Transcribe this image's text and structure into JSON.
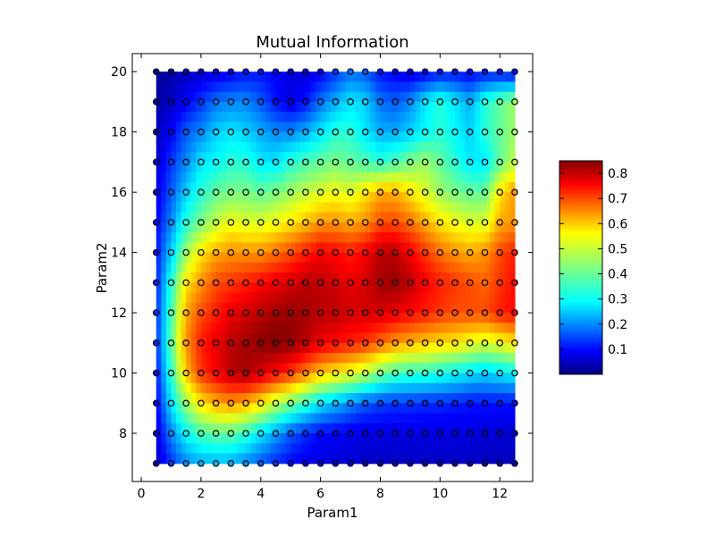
{
  "chart_data": {
    "type": "heatmap",
    "title": "Mutual Information",
    "xlabel": "Param1",
    "ylabel": "Param2",
    "xlim": [
      -0.3,
      13.1
    ],
    "ylim": [
      6.4,
      20.6
    ],
    "x_ticks": [
      0,
      2,
      4,
      6,
      8,
      10,
      12
    ],
    "y_ticks": [
      8,
      10,
      12,
      14,
      16,
      18,
      20
    ],
    "colormap": "jet",
    "colorbar": {
      "range": [
        0.0,
        0.85
      ],
      "ticks": [
        "0.1",
        "0.2",
        "0.3",
        "0.4",
        "0.5",
        "0.6",
        "0.7",
        "0.8"
      ],
      "placement": "right"
    },
    "grid": false,
    "x": [
      0.5,
      1.0,
      1.5,
      2.0,
      2.5,
      3.0,
      3.5,
      4.0,
      4.5,
      5.0,
      5.5,
      6.0,
      6.5,
      7.0,
      7.5,
      8.0,
      8.5,
      9.0,
      9.5,
      10.0,
      10.5,
      11.0,
      11.5,
      12.0,
      12.5
    ],
    "y": [
      20,
      19,
      18,
      17,
      16,
      15,
      14,
      13,
      12,
      11,
      10,
      9,
      8,
      7
    ],
    "z": [
      [
        0.02,
        0.03,
        0.05,
        0.07,
        0.08,
        0.1,
        0.12,
        0.12,
        0.1,
        0.08,
        0.07,
        0.1,
        0.15,
        0.2,
        0.18,
        0.12,
        0.1,
        0.08,
        0.1,
        0.12,
        0.12,
        0.1,
        0.12,
        0.12,
        0.1
      ],
      [
        0.03,
        0.06,
        0.1,
        0.15,
        0.2,
        0.22,
        0.22,
        0.18,
        0.12,
        0.08,
        0.12,
        0.2,
        0.25,
        0.3,
        0.28,
        0.2,
        0.18,
        0.22,
        0.3,
        0.35,
        0.3,
        0.25,
        0.35,
        0.4,
        0.45
      ],
      [
        0.05,
        0.1,
        0.18,
        0.22,
        0.28,
        0.3,
        0.28,
        0.25,
        0.22,
        0.22,
        0.25,
        0.3,
        0.35,
        0.35,
        0.3,
        0.25,
        0.25,
        0.28,
        0.32,
        0.35,
        0.32,
        0.28,
        0.35,
        0.4,
        0.45
      ],
      [
        0.06,
        0.15,
        0.22,
        0.3,
        0.32,
        0.35,
        0.35,
        0.3,
        0.3,
        0.35,
        0.38,
        0.4,
        0.42,
        0.4,
        0.38,
        0.35,
        0.38,
        0.42,
        0.45,
        0.4,
        0.35,
        0.3,
        0.3,
        0.4,
        0.48
      ],
      [
        0.08,
        0.18,
        0.28,
        0.35,
        0.4,
        0.42,
        0.42,
        0.4,
        0.42,
        0.45,
        0.48,
        0.5,
        0.52,
        0.5,
        0.55,
        0.6,
        0.6,
        0.55,
        0.5,
        0.45,
        0.42,
        0.4,
        0.4,
        0.55,
        0.62
      ],
      [
        0.1,
        0.22,
        0.35,
        0.42,
        0.48,
        0.52,
        0.5,
        0.5,
        0.52,
        0.55,
        0.58,
        0.62,
        0.62,
        0.6,
        0.62,
        0.68,
        0.68,
        0.65,
        0.6,
        0.55,
        0.52,
        0.5,
        0.5,
        0.6,
        0.62
      ],
      [
        0.12,
        0.28,
        0.45,
        0.55,
        0.6,
        0.62,
        0.62,
        0.62,
        0.65,
        0.68,
        0.72,
        0.75,
        0.74,
        0.72,
        0.75,
        0.8,
        0.8,
        0.75,
        0.7,
        0.65,
        0.62,
        0.6,
        0.62,
        0.68,
        0.72
      ],
      [
        0.13,
        0.35,
        0.55,
        0.62,
        0.68,
        0.7,
        0.72,
        0.74,
        0.76,
        0.78,
        0.8,
        0.8,
        0.78,
        0.76,
        0.78,
        0.82,
        0.83,
        0.8,
        0.75,
        0.72,
        0.7,
        0.68,
        0.66,
        0.7,
        0.74
      ],
      [
        0.14,
        0.38,
        0.6,
        0.68,
        0.72,
        0.76,
        0.78,
        0.8,
        0.82,
        0.83,
        0.82,
        0.8,
        0.8,
        0.78,
        0.78,
        0.78,
        0.76,
        0.74,
        0.72,
        0.7,
        0.68,
        0.68,
        0.68,
        0.72,
        0.74
      ],
      [
        0.14,
        0.4,
        0.62,
        0.72,
        0.76,
        0.8,
        0.82,
        0.84,
        0.85,
        0.84,
        0.8,
        0.76,
        0.74,
        0.72,
        0.7,
        0.66,
        0.62,
        0.6,
        0.58,
        0.56,
        0.55,
        0.52,
        0.5,
        0.52,
        0.55
      ],
      [
        0.12,
        0.36,
        0.58,
        0.7,
        0.75,
        0.8,
        0.82,
        0.78,
        0.74,
        0.7,
        0.64,
        0.58,
        0.55,
        0.52,
        0.48,
        0.42,
        0.38,
        0.36,
        0.36,
        0.34,
        0.32,
        0.3,
        0.28,
        0.3,
        0.32
      ],
      [
        0.1,
        0.3,
        0.45,
        0.55,
        0.6,
        0.62,
        0.6,
        0.55,
        0.48,
        0.42,
        0.36,
        0.3,
        0.26,
        0.22,
        0.18,
        0.16,
        0.15,
        0.15,
        0.14,
        0.14,
        0.13,
        0.12,
        0.12,
        0.12,
        0.12
      ],
      [
        0.07,
        0.22,
        0.32,
        0.38,
        0.4,
        0.4,
        0.36,
        0.3,
        0.24,
        0.18,
        0.14,
        0.11,
        0.1,
        0.09,
        0.08,
        0.08,
        0.08,
        0.08,
        0.08,
        0.08,
        0.08,
        0.08,
        0.07,
        0.07,
        0.07
      ],
      [
        0.05,
        0.15,
        0.22,
        0.25,
        0.26,
        0.25,
        0.22,
        0.18,
        0.14,
        0.11,
        0.09,
        0.08,
        0.07,
        0.07,
        0.06,
        0.06,
        0.06,
        0.06,
        0.06,
        0.06,
        0.06,
        0.06,
        0.05,
        0.05,
        0.05
      ]
    ]
  }
}
